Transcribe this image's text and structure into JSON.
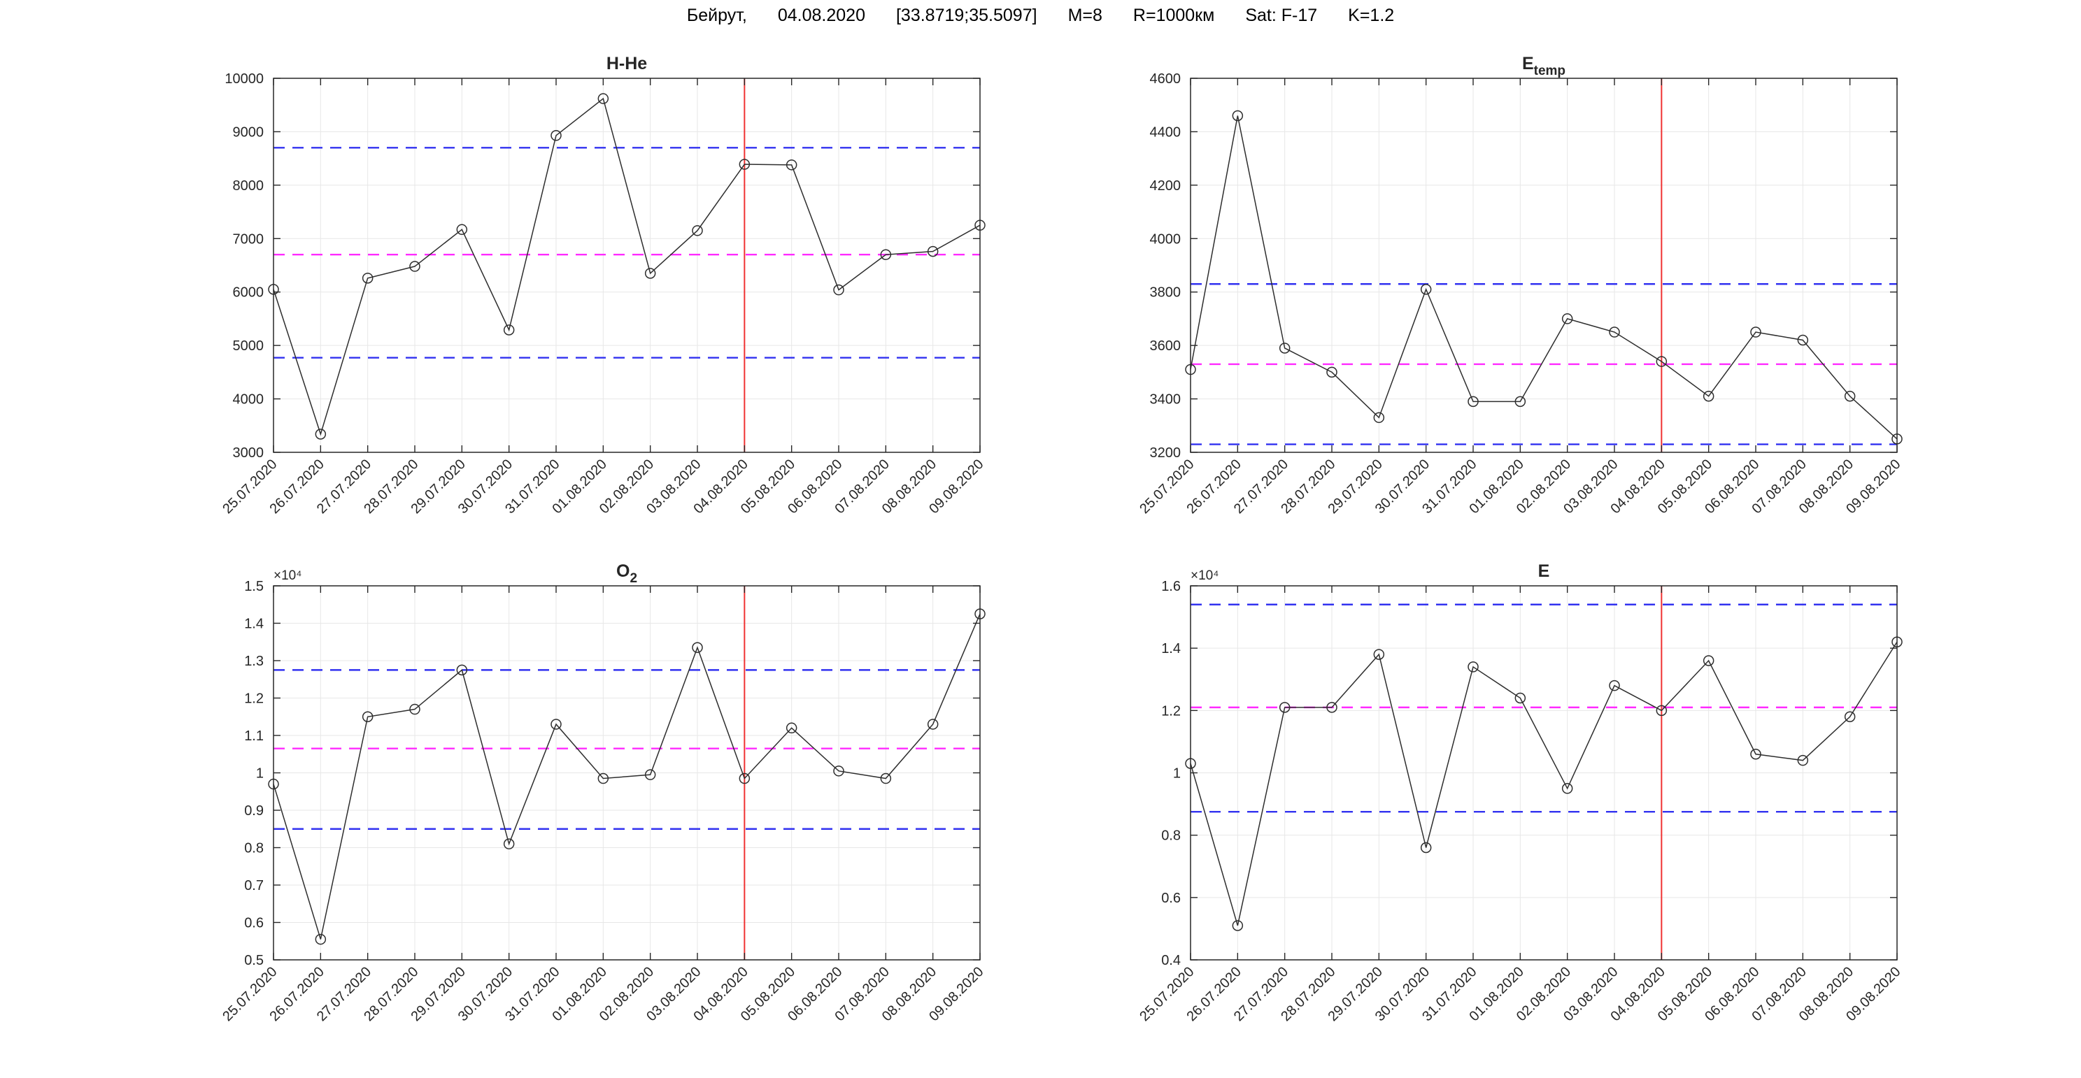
{
  "header": {
    "title_segments": [
      "Бейрут,",
      "04.08.2020",
      "[33.8719;35.5097]",
      "M=8",
      "R=1000км",
      "Sat: F-17",
      "K=1.2"
    ]
  },
  "colors": {
    "background": "#ffffff",
    "series_line": "#2e2e2e",
    "marker_edge": "#2e2e2e",
    "band_line": "#3232f0",
    "mean_line": "#ff2bff",
    "event_line": "#f03232",
    "grid": "#e7e7e7",
    "axis": "#262626",
    "text": "#262626"
  },
  "chart_data": [
    {
      "type": "line",
      "name": "h-he",
      "title_main": "H-He",
      "title_sub": "",
      "exponent_label": "",
      "categories": [
        "25.07.2020",
        "26.07.2020",
        "27.07.2020",
        "28.07.2020",
        "29.07.2020",
        "30.07.2020",
        "31.07.2020",
        "01.08.2020",
        "02.08.2020",
        "03.08.2020",
        "04.08.2020",
        "05.08.2020",
        "06.08.2020",
        "07.08.2020",
        "08.08.2020",
        "09.08.2020"
      ],
      "values": [
        6050,
        3340,
        6260,
        6480,
        7170,
        5290,
        8930,
        9620,
        6350,
        7150,
        8390,
        8380,
        6040,
        6700,
        6760,
        7250
      ],
      "ylim": [
        3000,
        10000
      ],
      "ytick_step": 1000,
      "ytick_labels": [
        "3000",
        "4000",
        "5000",
        "6000",
        "7000",
        "8000",
        "9000",
        "10000"
      ],
      "band_lines": {
        "upper": 8700,
        "lower": 4770
      },
      "mean_line": 6700,
      "event_line_at": "04.08.2020",
      "xlabel": "",
      "ylabel": "",
      "grid": true,
      "legend": null,
      "marker": "o"
    },
    {
      "type": "line",
      "name": "e-temp",
      "title_main": "E",
      "title_sub": "temp",
      "exponent_label": "",
      "categories": [
        "25.07.2020",
        "26.07.2020",
        "27.07.2020",
        "28.07.2020",
        "29.07.2020",
        "30.07.2020",
        "31.07.2020",
        "01.08.2020",
        "02.08.2020",
        "03.08.2020",
        "04.08.2020",
        "05.08.2020",
        "06.08.2020",
        "07.08.2020",
        "08.08.2020",
        "09.08.2020"
      ],
      "values": [
        3510,
        4460,
        3590,
        3500,
        3330,
        3810,
        3390,
        3390,
        3700,
        3650,
        3540,
        3410,
        3650,
        3620,
        3410,
        3250
      ],
      "ylim": [
        3200,
        4600
      ],
      "ytick_step": 200,
      "ytick_labels": [
        "3200",
        "3400",
        "3600",
        "3800",
        "4000",
        "4200",
        "4400",
        "4600"
      ],
      "band_lines": {
        "upper": 3830,
        "lower": 3230
      },
      "mean_line": 3530,
      "event_line_at": "04.08.2020",
      "xlabel": "",
      "ylabel": "",
      "grid": true,
      "legend": null,
      "marker": "o"
    },
    {
      "type": "line",
      "name": "o2",
      "title_main": "O",
      "title_sub": "2",
      "exponent_label": "×10⁴",
      "categories": [
        "25.07.2020",
        "26.07.2020",
        "27.07.2020",
        "28.07.2020",
        "29.07.2020",
        "30.07.2020",
        "31.07.2020",
        "01.08.2020",
        "02.08.2020",
        "03.08.2020",
        "04.08.2020",
        "05.08.2020",
        "06.08.2020",
        "07.08.2020",
        "08.08.2020",
        "09.08.2020"
      ],
      "values": [
        0.97,
        0.555,
        1.15,
        1.17,
        1.275,
        0.81,
        1.13,
        0.985,
        0.995,
        1.335,
        0.985,
        1.12,
        1.005,
        0.985,
        1.13,
        1.425
      ],
      "ylim": [
        0.5,
        1.5
      ],
      "ytick_step": 0.1,
      "ytick_labels": [
        "0.5",
        "0.6",
        "0.7",
        "0.8",
        "0.9",
        "1",
        "1.1",
        "1.2",
        "1.3",
        "1.4",
        "1.5"
      ],
      "band_lines": {
        "upper": 1.275,
        "lower": 0.85
      },
      "mean_line": 1.065,
      "event_line_at": "04.08.2020",
      "xlabel": "",
      "ylabel": "",
      "grid": true,
      "legend": null,
      "marker": "o"
    },
    {
      "type": "line",
      "name": "e",
      "title_main": "E",
      "title_sub": "",
      "exponent_label": "×10⁴",
      "categories": [
        "25.07.2020",
        "26.07.2020",
        "27.07.2020",
        "28.07.2020",
        "29.07.2020",
        "30.07.2020",
        "31.07.2020",
        "01.08.2020",
        "02.08.2020",
        "03.08.2020",
        "04.08.2020",
        "05.08.2020",
        "06.08.2020",
        "07.08.2020",
        "08.08.2020",
        "09.08.2020"
      ],
      "values": [
        1.03,
        0.51,
        1.21,
        1.21,
        1.38,
        0.76,
        1.34,
        1.24,
        0.95,
        1.28,
        1.2,
        1.36,
        1.06,
        1.04,
        1.18,
        1.42
      ],
      "ylim": [
        0.4,
        1.6
      ],
      "ytick_step": 0.2,
      "ytick_labels": [
        "0.4",
        "0.6",
        "0.8",
        "1",
        "1.2",
        "1.4",
        "1.6"
      ],
      "band_lines": {
        "upper": 1.54,
        "lower": 0.875
      },
      "mean_line": 1.21,
      "event_line_at": "04.08.2020",
      "xlabel": "",
      "ylabel": "",
      "grid": true,
      "legend": null,
      "marker": "o"
    }
  ]
}
